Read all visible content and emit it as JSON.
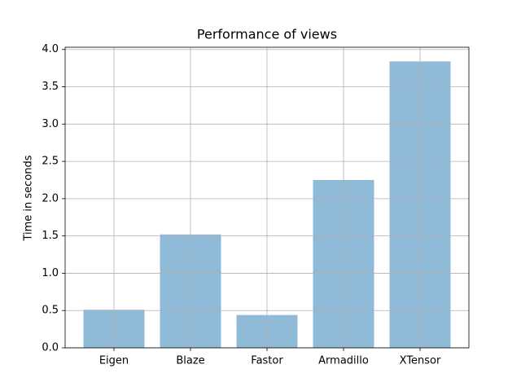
{
  "chart_data": {
    "type": "bar",
    "title": "Performance of views",
    "ylabel": "Time in seconds",
    "categories": [
      "Eigen",
      "Blaze",
      "Fastor",
      "Armadillo",
      "XTensor"
    ],
    "values": [
      0.51,
      1.52,
      0.44,
      2.25,
      3.84
    ],
    "color": "#8fbbd9",
    "ylim": [
      0,
      4.03
    ],
    "yticks": [
      {
        "value": 0,
        "label": "0.0"
      },
      0.5,
      {
        "value": 1,
        "label": "1.0"
      },
      1.5,
      {
        "value": 2,
        "label": "2.0"
      },
      2.5,
      {
        "value": 3,
        "label": "3.0"
      },
      3.5,
      {
        "value": 4,
        "label": "4.0"
      }
    ],
    "grid": true
  }
}
